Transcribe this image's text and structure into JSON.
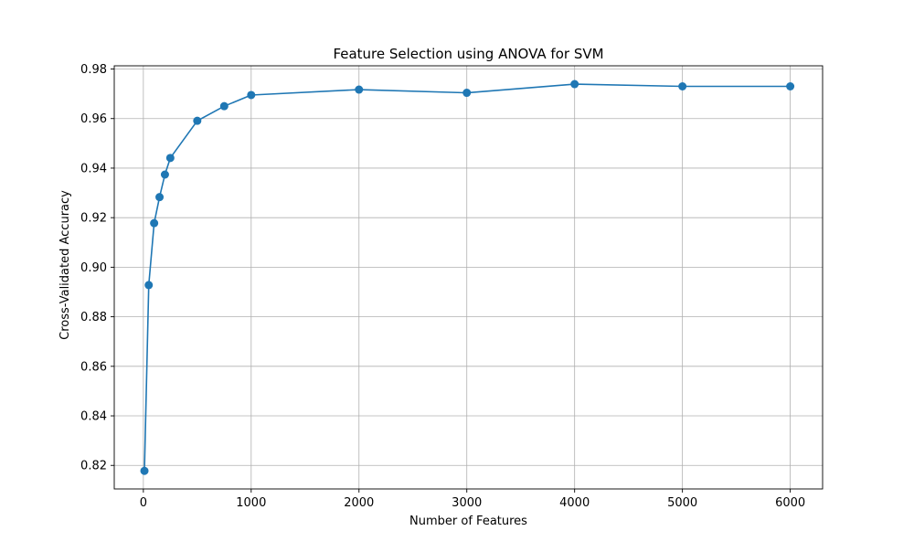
{
  "chart_data": {
    "type": "line",
    "title": "Feature Selection using ANOVA for SVM",
    "xlabel": "Number of Features",
    "ylabel": "Cross-Validated Accuracy",
    "xlim": [
      -270,
      6300
    ],
    "ylim": [
      0.8105,
      0.9813
    ],
    "xticks": [
      0,
      1000,
      2000,
      3000,
      4000,
      5000,
      6000
    ],
    "yticks": [
      0.82,
      0.84,
      0.86,
      0.88,
      0.9,
      0.92,
      0.94,
      0.96,
      0.98
    ],
    "ytick_labels": [
      "0.82",
      "0.84",
      "0.86",
      "0.88",
      "0.90",
      "0.92",
      "0.94",
      "0.96",
      "0.98"
    ],
    "grid": true,
    "series_color": "#1f77b4",
    "series": [
      {
        "marker": "circle",
        "x": [
          10,
          50,
          100,
          150,
          200,
          250,
          500,
          750,
          1000,
          2000,
          3000,
          4000,
          5000,
          6000
        ],
        "y": [
          0.8178,
          0.8928,
          0.9178,
          0.9283,
          0.9374,
          0.9441,
          0.9591,
          0.965,
          0.9695,
          0.9717,
          0.9704,
          0.9739,
          0.973,
          0.973
        ]
      }
    ]
  }
}
